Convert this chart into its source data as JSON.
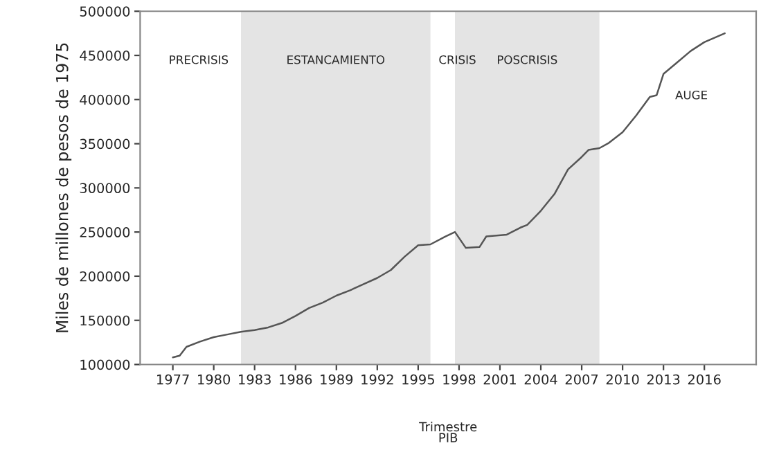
{
  "chart_data": {
    "type": "line",
    "xlabel": "Trimestre",
    "ylabel": "Miles de millones de pesos de 1975",
    "x": [
      1977.0,
      1977.5,
      1978.0,
      1979.0,
      1980.0,
      1981.0,
      1982.0,
      1983.0,
      1984.0,
      1985.0,
      1986.0,
      1987.0,
      1988.0,
      1989.0,
      1990.0,
      1991.0,
      1992.0,
      1993.0,
      1994.0,
      1995.0,
      1995.9,
      1997.0,
      1997.7,
      1998.5,
      1999.5,
      2000.0,
      2001.5,
      2002.5,
      2003.0,
      2004.0,
      2005.0,
      2006.0,
      2007.0,
      2007.5,
      2008.3,
      2009.0,
      2010.0,
      2011.0,
      2012.0,
      2012.5,
      2013.0,
      2014.0,
      2015.0,
      2016.0,
      2017.5
    ],
    "series": [
      {
        "color": "#555555",
        "values": [
          108000,
          110000,
          120000,
          126000,
          131000,
          134000,
          137000,
          139000,
          142000,
          147000,
          155000,
          164000,
          170000,
          178000,
          184000,
          191000,
          198000,
          207000,
          222000,
          235000,
          236000,
          245000,
          250000,
          232000,
          233000,
          245000,
          247000,
          255000,
          258000,
          274000,
          293000,
          321000,
          335000,
          343000,
          345000,
          351000,
          363000,
          382000,
          403000,
          405000,
          429000,
          442000,
          455000,
          465000,
          475000
        ]
      }
    ],
    "xlim": [
      1974.6,
      2019.8
    ],
    "ylim": [
      100000,
      500000
    ],
    "xticks": [
      1977,
      1980,
      1983,
      1986,
      1989,
      1992,
      1995,
      1998,
      2001,
      2004,
      2007,
      2010,
      2013,
      2016
    ],
    "yticks": [
      100000,
      150000,
      200000,
      250000,
      300000,
      350000,
      400000,
      450000,
      500000
    ],
    "bands": [
      {
        "axis": "x",
        "from": 1982.0,
        "to": 1995.9,
        "color": "#e4e4e4",
        "label": "ESTANCAMIENTO"
      },
      {
        "axis": "x",
        "from": 1997.7,
        "to": 2008.3,
        "color": "#e4e4e4",
        "label": "POSCRISIS"
      }
    ],
    "annotations": [
      "PRECRISIS",
      "CRISIS",
      "AUGE",
      "PIB"
    ],
    "grid": false,
    "legend": false,
    "marker": "none",
    "line_style": "solid"
  }
}
